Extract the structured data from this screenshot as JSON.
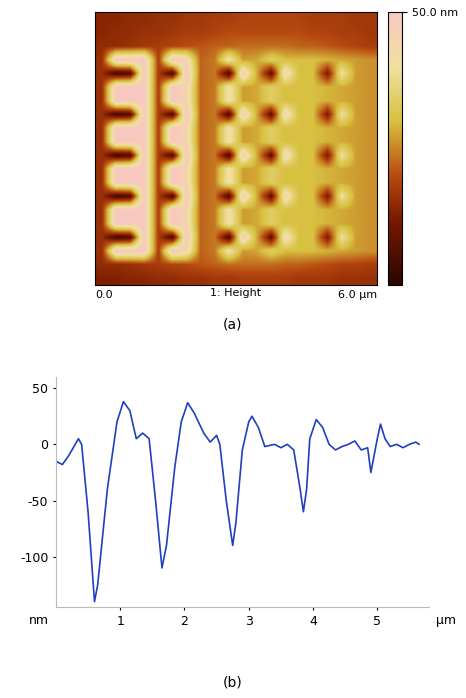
{
  "chart_data": [
    {
      "type": "heatmap",
      "caption": "(a)",
      "x_label": "1: Height",
      "xlim": [
        0,
        6
      ],
      "ylim": [
        0,
        6
      ],
      "xticks": [
        {
          "value": 0,
          "label": "0.0"
        },
        {
          "value": 6,
          "label": "6.0 µm"
        }
      ],
      "tick_labels": "x",
      "cells": [
        [
          14,
          14,
          15,
          15,
          16,
          16,
          17,
          17,
          18,
          18,
          19,
          19,
          19,
          19,
          19,
          18,
          18,
          18,
          17,
          17
        ],
        [
          14,
          15,
          15,
          16,
          16,
          17,
          18,
          18,
          19,
          20,
          20,
          20,
          20,
          20,
          20,
          19,
          19,
          18,
          18,
          17
        ],
        [
          15,
          15,
          16,
          17,
          18,
          19,
          20,
          21,
          22,
          22,
          23,
          23,
          23,
          23,
          22,
          22,
          21,
          20,
          19,
          18
        ],
        [
          16,
          50,
          50,
          50,
          18,
          50,
          45,
          22,
          24,
          42,
          27,
          28,
          34,
          30,
          30,
          30,
          29,
          28,
          27,
          26
        ],
        [
          16,
          4,
          6,
          50,
          18,
          5,
          50,
          22,
          24,
          5,
          48,
          28,
          8,
          45,
          30,
          30,
          12,
          40,
          27,
          26
        ],
        [
          16,
          50,
          50,
          50,
          18,
          50,
          45,
          22,
          24,
          42,
          27,
          28,
          34,
          30,
          30,
          30,
          29,
          28,
          27,
          26
        ],
        [
          16,
          50,
          50,
          50,
          18,
          50,
          45,
          22,
          24,
          42,
          27,
          28,
          34,
          30,
          30,
          30,
          29,
          28,
          27,
          26
        ],
        [
          16,
          4,
          6,
          50,
          18,
          5,
          50,
          22,
          24,
          5,
          48,
          28,
          8,
          45,
          30,
          30,
          12,
          40,
          27,
          26
        ],
        [
          16,
          50,
          50,
          50,
          18,
          50,
          45,
          22,
          24,
          42,
          27,
          28,
          34,
          30,
          30,
          30,
          29,
          28,
          27,
          26
        ],
        [
          16,
          50,
          50,
          50,
          18,
          50,
          45,
          22,
          24,
          42,
          27,
          28,
          34,
          30,
          30,
          30,
          29,
          28,
          27,
          26
        ],
        [
          16,
          4,
          6,
          50,
          18,
          5,
          50,
          22,
          24,
          5,
          48,
          28,
          8,
          45,
          30,
          30,
          12,
          40,
          27,
          26
        ],
        [
          16,
          50,
          50,
          50,
          18,
          50,
          45,
          22,
          24,
          42,
          27,
          28,
          34,
          30,
          30,
          30,
          29,
          28,
          27,
          26
        ],
        [
          16,
          50,
          50,
          50,
          18,
          50,
          45,
          22,
          24,
          42,
          27,
          28,
          34,
          30,
          30,
          30,
          29,
          28,
          27,
          26
        ],
        [
          16,
          4,
          6,
          50,
          18,
          5,
          50,
          22,
          24,
          5,
          48,
          28,
          8,
          45,
          30,
          30,
          12,
          40,
          27,
          26
        ],
        [
          16,
          50,
          50,
          50,
          18,
          50,
          45,
          22,
          24,
          42,
          27,
          28,
          34,
          30,
          30,
          30,
          29,
          28,
          27,
          26
        ],
        [
          16,
          50,
          50,
          50,
          18,
          50,
          45,
          22,
          24,
          42,
          27,
          28,
          34,
          30,
          30,
          30,
          29,
          28,
          27,
          26
        ],
        [
          16,
          4,
          6,
          50,
          18,
          5,
          50,
          22,
          24,
          5,
          48,
          28,
          8,
          45,
          30,
          30,
          12,
          40,
          27,
          26
        ],
        [
          16,
          50,
          50,
          50,
          18,
          50,
          45,
          22,
          24,
          42,
          27,
          28,
          34,
          30,
          30,
          30,
          29,
          28,
          27,
          26
        ],
        [
          15,
          15,
          16,
          17,
          18,
          19,
          20,
          21,
          22,
          23,
          23,
          23,
          23,
          22,
          22,
          21,
          20,
          19,
          19,
          18
        ],
        [
          13,
          13,
          14,
          14,
          15,
          15,
          16,
          16,
          17,
          17,
          18,
          18,
          18,
          18,
          17,
          17,
          17,
          16,
          16,
          16
        ]
      ],
      "colorbar": {
        "range": [
          0,
          50
        ],
        "ticks": [
          {
            "value": 50,
            "label": "50.0 nm"
          }
        ]
      }
    },
    {
      "type": "line",
      "caption": "(b)",
      "xlabel": "µm",
      "ylabel": "nm",
      "color": "#1f3fbf",
      "x": [
        0,
        0.1,
        0.2,
        0.3,
        0.35,
        0.4,
        0.5,
        0.6,
        0.65,
        0.8,
        0.95,
        1.05,
        1.15,
        1.25,
        1.35,
        1.45,
        1.55,
        1.65,
        1.72,
        1.85,
        1.95,
        2.05,
        2.15,
        2.3,
        2.4,
        2.5,
        2.55,
        2.65,
        2.75,
        2.8,
        2.9,
        3.0,
        3.05,
        3.15,
        3.25,
        3.4,
        3.5,
        3.6,
        3.7,
        3.8,
        3.85,
        3.9,
        3.95,
        4.05,
        4.15,
        4.25,
        4.35,
        4.45,
        4.55,
        4.65,
        4.75,
        4.85,
        4.9,
        4.95,
        5.0,
        5.05,
        5.12,
        5.2,
        5.3,
        5.4,
        5.5,
        5.6,
        5.65
      ],
      "values": [
        -15,
        -18,
        -10,
        0,
        5,
        0,
        -60,
        -140,
        -125,
        -40,
        20,
        38,
        30,
        5,
        10,
        5,
        -50,
        -110,
        -90,
        -20,
        20,
        37,
        28,
        10,
        2,
        8,
        0,
        -50,
        -90,
        -70,
        -5,
        20,
        25,
        15,
        -2,
        0,
        -3,
        0,
        -5,
        -40,
        -60,
        -40,
        5,
        22,
        15,
        0,
        -5,
        -2,
        0,
        3,
        -5,
        -3,
        -25,
        -10,
        5,
        18,
        5,
        -2,
        0,
        -3,
        0,
        2,
        0
      ],
      "xlim": [
        0,
        5.8
      ],
      "ylim": [
        -145,
        60
      ],
      "xticks": [
        1,
        2,
        3,
        4,
        5
      ],
      "yticks": [
        50,
        0,
        -50,
        -100
      ]
    }
  ]
}
